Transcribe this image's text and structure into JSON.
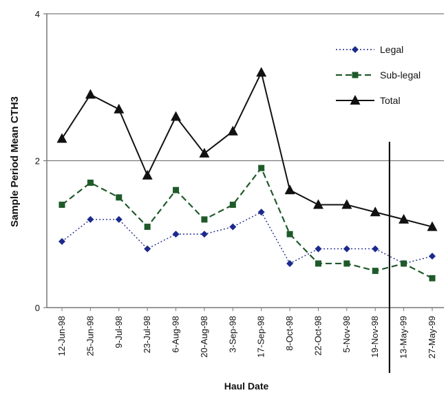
{
  "chart_data": {
    "type": "line",
    "title": "",
    "xlabel": "Haul Date",
    "ylabel": "Sample Period Mean CTH3",
    "ylim": [
      0,
      4
    ],
    "yticks": [
      "0",
      "2",
      "4"
    ],
    "grid": "horizontal at 2 and 4",
    "legend_position": "top-right",
    "categories": [
      "12-Jun-98",
      "25-Jun-98",
      "9-Jul-98",
      "23-Jul-98",
      "6-Aug-98",
      "20-Aug-98",
      "3-Sep-98",
      "17-Sep-98",
      "8-Oct-98",
      "22-Oct-98",
      "5-Nov-98",
      "19-Nov-98",
      "13-May-99",
      "27-May-99"
    ],
    "divider_after_category": "19-Nov-98",
    "series": [
      {
        "name": "Legal",
        "style": "dotted",
        "marker": "diamond",
        "color": "#1c2a8c",
        "values": [
          0.9,
          1.2,
          1.2,
          0.8,
          1.0,
          1.0,
          1.1,
          1.3,
          0.6,
          0.8,
          0.8,
          0.8,
          0.6,
          0.7
        ]
      },
      {
        "name": "Sub-legal",
        "style": "dashed",
        "marker": "square",
        "color": "#1f5a2a",
        "values": [
          1.4,
          1.7,
          1.5,
          1.1,
          1.6,
          1.2,
          1.4,
          1.9,
          1.0,
          0.6,
          0.6,
          0.5,
          0.6,
          0.4
        ]
      },
      {
        "name": "Total",
        "style": "solid",
        "marker": "triangle",
        "color": "#111111",
        "values": [
          2.3,
          2.9,
          2.7,
          1.8,
          2.6,
          2.1,
          2.4,
          3.2,
          1.6,
          1.4,
          1.4,
          1.3,
          1.2,
          1.1
        ]
      }
    ]
  }
}
